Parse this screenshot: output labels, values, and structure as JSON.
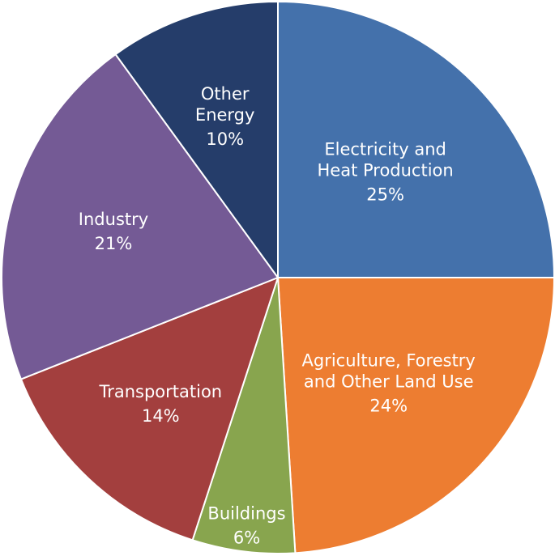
{
  "chart_data": {
    "type": "pie",
    "slices": [
      {
        "label_lines": [
          "Electricity and",
          "Heat Production"
        ],
        "value": 25,
        "value_label": "25%",
        "color": "#4471ab"
      },
      {
        "label_lines": [
          "Agriculture, Forestry",
          "and Other Land Use"
        ],
        "value": 24,
        "value_label": "24%",
        "color": "#ed7d31"
      },
      {
        "label_lines": [
          "Buildings"
        ],
        "value": 6,
        "value_label": "6%",
        "color": "#88a54e"
      },
      {
        "label_lines": [
          "Transportation"
        ],
        "value": 14,
        "value_label": "14%",
        "color": "#a33f3e"
      },
      {
        "label_lines": [
          "Industry"
        ],
        "value": 21,
        "value_label": "21%",
        "color": "#745a95"
      },
      {
        "label_lines": [
          "Other",
          "Energy"
        ],
        "value": 10,
        "value_label": "10%",
        "color": "#253d6a"
      }
    ],
    "start": "12 o'clock",
    "direction": "clockwise",
    "legend": "none"
  }
}
